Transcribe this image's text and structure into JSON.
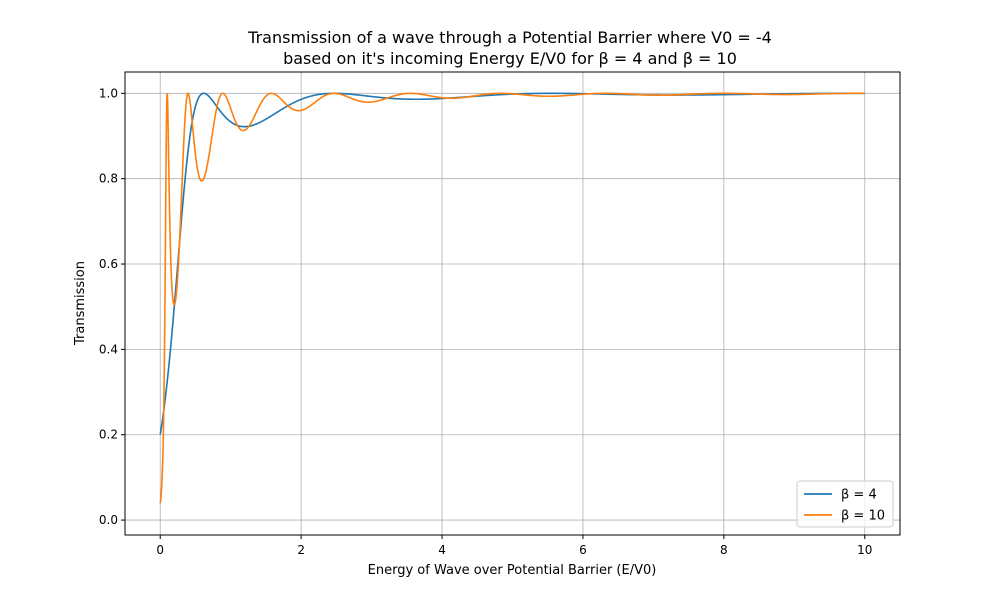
{
  "chart_data": {
    "type": "line",
    "title": "Transmission of a wave through a Potential Barrier where V0 = -4\nbased on it's incoming Energy E/V0 for β = 4 and β = 10",
    "xlabel": "Energy of Wave over Potential Barrier (E/V0)",
    "ylabel": "Transmission",
    "xlim": [
      -0.5,
      10.5
    ],
    "ylim": [
      -0.035,
      1.05
    ],
    "xticks": [
      0,
      2,
      4,
      6,
      8,
      10
    ],
    "yticks": [
      0.0,
      0.2,
      0.4,
      0.6,
      0.8,
      1.0
    ],
    "xtick_labels": [
      "0",
      "2",
      "4",
      "6",
      "8",
      "10"
    ],
    "ytick_labels": [
      "0.0",
      "0.2",
      "0.4",
      "0.6",
      "0.8",
      "1.0"
    ],
    "grid": true,
    "legend_position": "bottom-right",
    "barrier_V0": -4,
    "series": [
      {
        "name": "β = 4",
        "beta": 4,
        "color": "#1f77b4"
      },
      {
        "name": "β = 10",
        "beta": 10,
        "color": "#ff7f0e"
      }
    ]
  }
}
